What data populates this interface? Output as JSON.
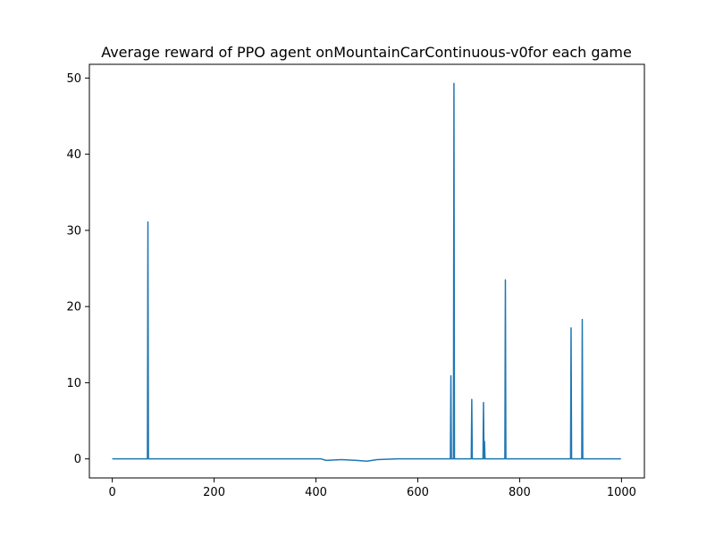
{
  "chart_data": {
    "type": "line",
    "title": "Average reward of PPO agent onMountainCarContinuous-v0for each game",
    "xlabel": "",
    "ylabel": "",
    "xlim": [
      -45,
      1045
    ],
    "ylim": [
      -2.5,
      51.8
    ],
    "grid": false,
    "xticks": [
      0,
      200,
      400,
      600,
      800,
      1000
    ],
    "yticks": [
      0,
      10,
      20,
      30,
      40,
      50
    ],
    "xtick_labels": [
      "0",
      "200",
      "400",
      "600",
      "800",
      "1000"
    ],
    "ytick_labels": [
      "0",
      "10",
      "20",
      "30",
      "40",
      "50"
    ],
    "series": [
      {
        "color": "#1f77b4",
        "points": [
          [
            0,
            0
          ],
          [
            69,
            0
          ],
          [
            70,
            31.1
          ],
          [
            71,
            0
          ],
          [
            200,
            0
          ],
          [
            410,
            0
          ],
          [
            420,
            -0.2
          ],
          [
            450,
            -0.1
          ],
          [
            480,
            -0.2
          ],
          [
            500,
            -0.3
          ],
          [
            520,
            -0.1
          ],
          [
            560,
            0
          ],
          [
            600,
            0
          ],
          [
            664,
            0
          ],
          [
            665,
            10.9
          ],
          [
            666,
            0
          ],
          [
            670,
            0
          ],
          [
            671,
            49.3
          ],
          [
            672,
            0
          ],
          [
            705,
            0
          ],
          [
            706,
            7.8
          ],
          [
            707,
            0
          ],
          [
            728,
            0
          ],
          [
            729,
            7.4
          ],
          [
            730,
            0
          ],
          [
            731,
            2.3
          ],
          [
            732,
            0
          ],
          [
            771,
            0
          ],
          [
            772,
            23.5
          ],
          [
            773,
            0
          ],
          [
            900,
            0
          ],
          [
            901,
            17.2
          ],
          [
            902,
            0
          ],
          [
            922,
            0
          ],
          [
            923,
            18.3
          ],
          [
            924,
            0
          ],
          [
            999,
            0
          ]
        ]
      }
    ]
  }
}
